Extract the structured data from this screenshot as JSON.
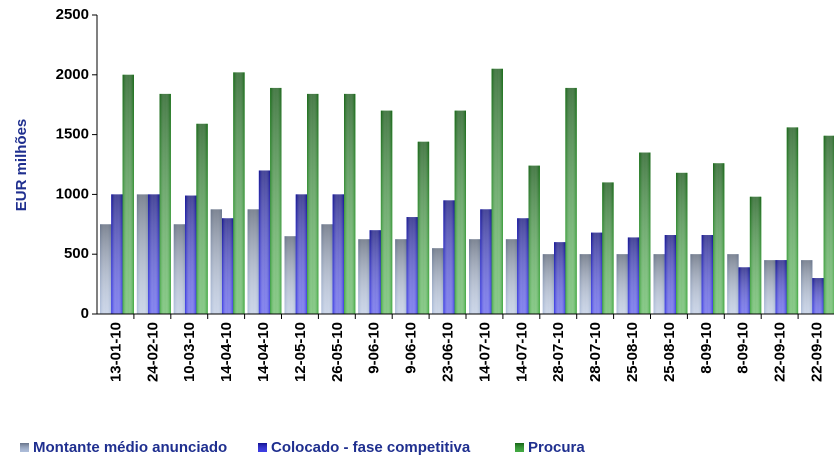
{
  "chart_data": {
    "type": "bar",
    "y_label": "EUR milhões",
    "categories": [
      "13-01-10",
      "24-02-10",
      "10-03-10",
      "14-04-10",
      "14-04-10",
      "12-05-10",
      "26-05-10",
      "9-06-10",
      "9-06-10",
      "23-06-10",
      "14-07-10",
      "14-07-10",
      "28-07-10",
      "28-07-10",
      "25-08-10",
      "25-08-10",
      "8-09-10",
      "8-09-10",
      "22-09-10",
      "22-09-10"
    ],
    "series": [
      {
        "name": "Montante médio anunciado",
        "color": "#9fb2d4",
        "values": [
          750,
          1000,
          750,
          875,
          875,
          650,
          750,
          625,
          625,
          550,
          625,
          625,
          500,
          500,
          500,
          500,
          500,
          500,
          450,
          450
        ]
      },
      {
        "name": "Colocado - fase competitiva",
        "color": "#1a1ae0",
        "values": [
          1000,
          1000,
          990,
          800,
          1200,
          1000,
          1000,
          700,
          810,
          950,
          875,
          800,
          600,
          680,
          640,
          660,
          660,
          390,
          450,
          300
        ]
      },
      {
        "name": "Procura",
        "color": "#1f9a1f",
        "values": [
          2000,
          1840,
          1590,
          2020,
          1890,
          1840,
          1840,
          1700,
          1440,
          1700,
          2050,
          1240,
          1890,
          1100,
          1350,
          1180,
          1260,
          980,
          1560,
          1490
        ]
      }
    ],
    "ylim": [
      0,
      2500
    ],
    "yticks": [
      0,
      500,
      1000,
      1500,
      2000,
      2500
    ]
  }
}
